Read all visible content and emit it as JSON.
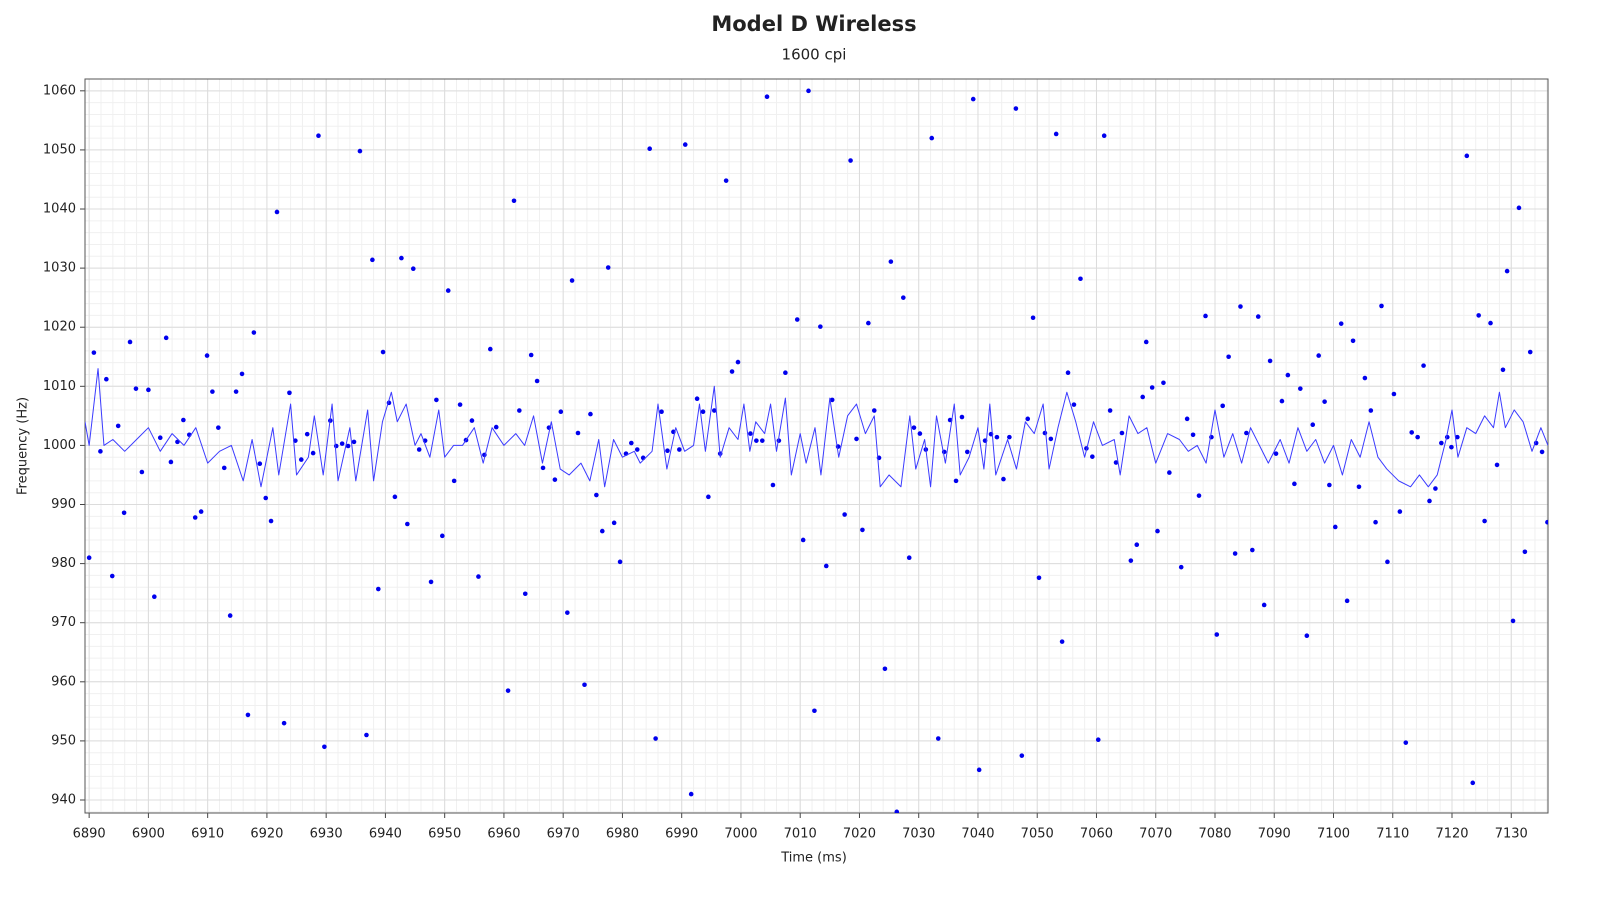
{
  "chart_data": {
    "type": "scatter",
    "title": "Model D Wireless",
    "subtitle": "1600 cpi",
    "x_label": "Time (ms)",
    "y_label": "Frequency (Hz)",
    "xlim": [
      6889.3,
      7136.2
    ],
    "ylim": [
      937.8,
      1062
    ],
    "xticks": [
      6890,
      6900,
      6910,
      6920,
      6930,
      6940,
      6950,
      6960,
      6970,
      6980,
      6990,
      7000,
      7010,
      7020,
      7030,
      7040,
      7050,
      7060,
      7070,
      7080,
      7090,
      7100,
      7110,
      7120,
      7130
    ],
    "yticks": [
      940,
      950,
      960,
      970,
      980,
      990,
      1000,
      1010,
      1020,
      1030,
      1040,
      1050,
      1060
    ],
    "grid": true,
    "minor_grid": 5,
    "series": [
      {
        "style": "points",
        "color": "#0000ee",
        "x": [
          6890.0,
          6890.8,
          6891.9,
          6892.9,
          6893.9,
          6894.9,
          6895.9,
          6896.9,
          6897.9,
          6898.9,
          6900.0,
          6901.0,
          6902.0,
          6903.0,
          6903.8,
          6904.9,
          6905.9,
          6906.9,
          6907.9,
          6908.9,
          6909.9,
          6910.8,
          6911.8,
          6912.8,
          6913.8,
          6914.8,
          6915.8,
          6916.8,
          6917.8,
          6918.8,
          6919.8,
          6920.7,
          6921.7,
          6922.9,
          6923.8,
          6924.8,
          6925.8,
          6926.8,
          6927.8,
          6928.7,
          6929.7,
          6930.7,
          6931.7,
          6932.7,
          6933.7,
          6934.7,
          6935.7,
          6936.8,
          6937.8,
          6938.8,
          6939.6,
          6940.6,
          6941.6,
          6942.7,
          6943.7,
          6944.7,
          6945.7,
          6946.7,
          6947.7,
          6948.6,
          6949.6,
          6950.6,
          6951.6,
          6952.6,
          6953.6,
          6954.6,
          6955.7,
          6956.7,
          6957.7,
          6958.7,
          6960.7,
          6961.7,
          6962.6,
          6963.6,
          6964.6,
          6965.6,
          6966.6,
          6967.6,
          6968.6,
          6969.6,
          6970.7,
          6971.5,
          6972.5,
          6973.6,
          6974.6,
          6975.6,
          6976.6,
          6977.6,
          6978.6,
          6979.6,
          6980.6,
          6981.5,
          6982.5,
          6983.5,
          6984.6,
          6985.6,
          6986.6,
          6987.6,
          6988.6,
          6989.6,
          6990.6,
          6991.6,
          6992.6,
          6993.6,
          6994.5,
          6995.5,
          6996.5,
          6997.5,
          6998.5,
          6999.5,
          7001.6,
          7002.6,
          7003.6,
          7004.4,
          7005.4,
          7006.4,
          7007.5,
          7009.5,
          7010.5,
          7011.4,
          7012.4,
          7013.4,
          7014.4,
          7015.4,
          7016.4,
          7017.5,
          7018.5,
          7019.5,
          7020.5,
          7021.5,
          7022.5,
          7023.3,
          7024.3,
          7025.3,
          7026.3,
          7027.4,
          7028.4,
          7029.2,
          7030.2,
          7031.2,
          7032.2,
          7033.3,
          7034.3,
          7035.3,
          7036.3,
          7037.3,
          7038.2,
          7039.2,
          7040.2,
          7041.2,
          7042.2,
          7043.2,
          7044.3,
          7045.3,
          7046.4,
          7047.4,
          7048.4,
          7049.3,
          7050.3,
          7051.3,
          7052.3,
          7053.2,
          7054.2,
          7055.2,
          7056.2,
          7057.3,
          7058.3,
          7059.3,
          7060.3,
          7061.3,
          7062.3,
          7063.3,
          7064.3,
          7065.8,
          7066.8,
          7067.8,
          7068.4,
          7069.4,
          7070.3,
          7071.3,
          7072.3,
          7074.3,
          7075.3,
          7076.3,
          7077.3,
          7078.4,
          7079.4,
          7080.3,
          7081.3,
          7082.3,
          7083.4,
          7084.3,
          7085.3,
          7086.3,
          7087.3,
          7088.3,
          7089.3,
          7090.3,
          7091.3,
          7092.3,
          7093.4,
          7094.4,
          7095.5,
          7096.5,
          7097.5,
          7098.5,
          7099.3,
          7100.3,
          7101.3,
          7102.3,
          7103.3,
          7104.3,
          7105.3,
          7106.3,
          7107.1,
          7108.1,
          7109.1,
          7110.2,
          7111.2,
          7112.2,
          7113.2,
          7114.2,
          7115.2,
          7116.2,
          7117.2,
          7118.2,
          7119.2,
          7119.9,
          7120.9,
          7122.5,
          7123.5,
          7124.5,
          7125.5,
          7126.5,
          7127.6,
          7128.6,
          7129.3,
          7130.3,
          7131.3,
          7132.3,
          7133.2,
          7134.2,
          7135.2,
          7136.1
        ],
        "values": [
          981.0,
          1015.7,
          999.0,
          1011.2,
          977.9,
          1003.3,
          988.6,
          1017.5,
          1009.6,
          995.5,
          1009.4,
          974.4,
          1001.3,
          1018.2,
          997.2,
          1000.6,
          1004.3,
          1001.8,
          987.8,
          988.8,
          1015.2,
          1009.1,
          1003.0,
          996.2,
          971.2,
          1009.1,
          1012.1,
          954.4,
          1019.1,
          996.9,
          991.1,
          987.2,
          1039.5,
          953.0,
          1008.9,
          1000.8,
          997.6,
          1001.9,
          998.7,
          1052.4,
          949.0,
          1004.2,
          999.9,
          1000.3,
          999.9,
          1000.6,
          1049.8,
          951.0,
          1031.4,
          975.7,
          1015.8,
          1007.2,
          991.3,
          1031.7,
          986.7,
          1029.9,
          999.3,
          1000.8,
          976.9,
          1007.7,
          984.7,
          1026.2,
          994.0,
          1006.9,
          1000.9,
          1004.2,
          977.8,
          998.4,
          1016.3,
          1003.1,
          958.5,
          1041.4,
          1005.9,
          974.9,
          1015.3,
          1010.9,
          996.2,
          1003.0,
          994.2,
          1005.7,
          971.7,
          1027.9,
          1002.1,
          959.5,
          1005.3,
          991.6,
          985.5,
          1030.1,
          986.9,
          980.3,
          998.6,
          1000.4,
          999.3,
          997.9,
          1050.2,
          950.4,
          1005.7,
          999.1,
          1002.3,
          999.3,
          1050.9,
          941.0,
          1007.9,
          1005.7,
          991.3,
          1005.9,
          998.6,
          1044.8,
          1012.5,
          1014.1,
          1002.0,
          1000.8,
          1000.8,
          1059.0,
          993.3,
          1000.8,
          1012.3,
          1021.3,
          984.0,
          1060.0,
          955.1,
          1020.1,
          979.6,
          1007.7,
          999.8,
          988.3,
          1048.2,
          1001.1,
          985.7,
          1020.7,
          1005.9,
          997.9,
          962.2,
          1031.1,
          938.0,
          1025.0,
          981.0,
          1003.0,
          1002.0,
          999.3,
          1052.0,
          950.4,
          998.9,
          1004.3,
          994.0,
          1004.8,
          998.9,
          1058.6,
          945.1,
          1000.8,
          1001.9,
          1001.4,
          994.3,
          1001.4,
          1057.0,
          947.5,
          1004.5,
          1021.6,
          977.6,
          1002.1,
          1001.1,
          1052.7,
          966.8,
          1012.3,
          1006.9,
          1028.2,
          999.5,
          998.1,
          950.2,
          1052.4,
          1005.9,
          997.1,
          1002.1,
          980.5,
          983.2,
          1008.2,
          1017.5,
          1009.8,
          985.5,
          1010.6,
          995.4,
          979.4,
          1004.5,
          1001.8,
          991.5,
          1021.9,
          1001.4,
          968.0,
          1006.7,
          1015.0,
          981.7,
          1023.5,
          1002.1,
          982.3,
          1021.8,
          973.0,
          1014.3,
          998.6,
          1007.5,
          1011.9,
          993.5,
          1009.6,
          967.8,
          1003.5,
          1015.2,
          1007.4,
          993.3,
          986.2,
          1020.6,
          973.7,
          1017.7,
          993.0,
          1011.4,
          1005.9,
          987.0,
          1023.6,
          980.3,
          1008.7,
          988.8,
          949.7,
          1002.2,
          1001.4,
          1013.5,
          990.6,
          992.7,
          1000.4,
          1001.4,
          999.7,
          1001.4,
          1049.0,
          942.9,
          1022.0,
          987.2,
          1020.7,
          996.7,
          1012.8,
          1029.5,
          970.3,
          1040.2,
          982.0,
          1015.8,
          1000.4,
          998.9,
          987.0
        ]
      },
      {
        "style": "line",
        "color": "#3b3bff",
        "x": [
          6889.3,
          6890,
          6891.5,
          6892.5,
          6894,
          6896,
          6898,
          6900,
          6902,
          6904,
          6906,
          6908,
          6910,
          6912,
          6914,
          6916,
          6917.5,
          6919,
          6921,
          6922,
          6924,
          6925,
          6927,
          6928,
          6929.5,
          6931,
          6932,
          6934,
          6935,
          6937,
          6938,
          6939.5,
          6941,
          6942,
          6943.5,
          6945,
          6946,
          6947.5,
          6949,
          6950,
          6951.5,
          6953,
          6955,
          6956.5,
          6958,
          6960,
          6962,
          6963.5,
          6965,
          6966.5,
          6968,
          6969.5,
          6971,
          6973,
          6974.5,
          6976,
          6977,
          6978.5,
          6980,
          6982,
          6983,
          6985,
          6986,
          6987.5,
          6989,
          6990.5,
          6992,
          6993,
          6994,
          6995.5,
          6996.5,
          6998,
          6999.5,
          7000.5,
          7001.5,
          7002.5,
          7004,
          7005,
          7006,
          7007.5,
          7008.5,
          7010,
          7011,
          7012.5,
          7013.5,
          7015,
          7016.5,
          7018,
          7019.5,
          7021,
          7022.5,
          7023.5,
          7025,
          7027,
          7028.5,
          7029.5,
          7031,
          7032,
          7033,
          7034.5,
          7036,
          7037,
          7038.5,
          7040,
          7041,
          7042,
          7043,
          7045,
          7046.5,
          7048,
          7049.5,
          7051,
          7052,
          7053.5,
          7055,
          7056.5,
          7058,
          7059.5,
          7061,
          7063,
          7064,
          7065.5,
          7067,
          7068.5,
          7070,
          7072,
          7074,
          7075.5,
          7077,
          7078.5,
          7080,
          7081.5,
          7083,
          7084.5,
          7086,
          7087.5,
          7089,
          7091,
          7092.5,
          7094,
          7095.5,
          7097,
          7098.5,
          7100,
          7101.5,
          7103,
          7104.5,
          7106,
          7107.5,
          7109,
          7111,
          7113,
          7114.5,
          7116,
          7117.5,
          7119,
          7120,
          7121,
          7122.5,
          7124,
          7125.5,
          7127,
          7128,
          7129,
          7130.5,
          7132,
          7133.5,
          7135,
          7136.2
        ],
        "values": [
          1004,
          1000,
          1013,
          1000,
          1001,
          999,
          1001,
          1003,
          999,
          1002,
          1000,
          1003,
          997,
          999,
          1000,
          994,
          1001,
          993,
          1003,
          995,
          1007,
          995,
          998,
          1005,
          995,
          1007,
          994,
          1003,
          994,
          1006,
          994,
          1004,
          1009,
          1004,
          1007,
          1000,
          1002,
          998,
          1006,
          998,
          1000,
          1000,
          1003,
          997,
          1003,
          1000,
          1002,
          1000,
          1005,
          997,
          1004,
          996,
          995,
          997,
          994,
          1001,
          993,
          1001,
          998,
          999,
          997,
          999,
          1007,
          996,
          1003,
          999,
          1000,
          1007,
          999,
          1010,
          998,
          1003,
          1001,
          1007,
          999,
          1004,
          1002,
          1007,
          999,
          1008,
          995,
          1002,
          997,
          1003,
          995,
          1008,
          998,
          1005,
          1007,
          1002,
          1005,
          993,
          995,
          993,
          1005,
          996,
          1001,
          993,
          1005,
          997,
          1007,
          995,
          998,
          1003,
          996,
          1007,
          995,
          1001,
          996,
          1004,
          1002,
          1007,
          996,
          1003,
          1009,
          1004,
          998,
          1004,
          1000,
          1001,
          995,
          1005,
          1002,
          1003,
          997,
          1002,
          1001,
          999,
          1000,
          997,
          1006,
          998,
          1002,
          997,
          1003,
          1000,
          997,
          1001,
          997,
          1003,
          999,
          1001,
          997,
          1000,
          995,
          1001,
          998,
          1004,
          998,
          996,
          994,
          993,
          995,
          993,
          995,
          1001,
          1006,
          998,
          1003,
          1002,
          1005,
          1003,
          1009,
          1003,
          1006,
          1004,
          999,
          1003,
          1000
        ]
      }
    ]
  }
}
